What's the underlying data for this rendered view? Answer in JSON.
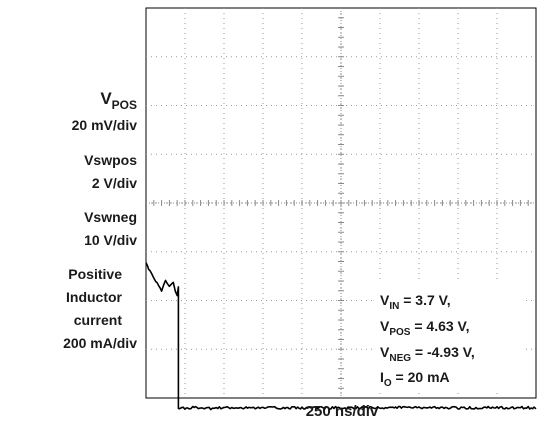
{
  "chart_data": {
    "type": "line",
    "title": "",
    "xlabel": "250 ns/div",
    "ylabel": "",
    "grid": true,
    "x_divisions": 10,
    "y_divisions": 8,
    "x_unit": "div",
    "y_unit": "div",
    "channel_labels": [
      {
        "main": "V",
        "sub": "POS",
        "scale": "20 mV/div"
      },
      {
        "main": "Vswpos",
        "scale": "2 V/div"
      },
      {
        "main": "Vswneg",
        "scale": "10 V/div"
      },
      {
        "lines": [
          "Positive",
          "Inductor",
          "current"
        ],
        "scale": "200 mA/div"
      }
    ],
    "conditions": [
      {
        "main": "V",
        "sub": "IN",
        "rest": " = 3.7 V,"
      },
      {
        "main": "V",
        "sub": "POS",
        "rest": " = 4.63 V,"
      },
      {
        "main": "V",
        "sub": "NEG",
        "rest": " = -4.93 V,"
      },
      {
        "main": "I",
        "sub": "O",
        "rest": " = 20 mA"
      }
    ],
    "series": [
      {
        "marker": "",
        "color": "#000000",
        "noise": 0.05,
        "x": [
          0,
          0.1,
          0.25,
          0.4,
          0.5,
          0.6,
          0.7,
          0.75,
          0.8,
          0.83,
          0.83,
          0.9,
          1.0,
          1.1,
          1.15,
          1.2,
          1.3,
          1.5,
          1.7,
          1.8,
          2.0,
          2.2,
          2.4,
          2.5,
          2.6,
          2.8,
          3.0,
          3.2,
          3.3,
          3.45,
          3.6,
          3.7,
          3.85,
          4.0,
          4.15,
          4.3,
          4.5,
          4.7,
          4.9,
          5.1,
          5.3,
          5.5,
          5.7,
          5.9,
          6.1,
          6.3,
          6.4,
          6.55,
          6.65,
          6.75,
          6.85,
          6.95,
          7.0,
          7.2,
          7.4,
          7.6,
          7.8,
          8.0,
          8.2,
          8.3,
          8.5,
          8.7,
          8.85,
          9.0,
          9.2,
          9.4,
          9.6,
          9.8,
          9.95,
          10.0
        ],
        "y": [
          2.75,
          2.6,
          2.4,
          2.2,
          2.4,
          2.3,
          2.35,
          2.2,
          2.1,
          2.3,
          -0.2,
          -0.2,
          -0.22,
          -0.2,
          -0.2,
          -0.18,
          -0.2,
          -0.2,
          -0.22,
          -0.2,
          -0.2,
          -0.2,
          -0.2,
          -0.2,
          -0.2,
          -0.2,
          -0.2,
          -0.2,
          -0.2,
          -0.2,
          -0.2,
          -0.2,
          -0.2,
          -0.2,
          -0.2,
          -0.2,
          -0.2,
          -0.2,
          -0.2,
          -0.2,
          -0.2,
          -0.2,
          -0.2,
          -0.2,
          -0.2,
          -0.2,
          -0.2,
          -0.2,
          -0.2,
          -0.2,
          -0.2,
          -0.2,
          -0.2,
          -0.2,
          -0.2,
          -0.2,
          -0.2,
          -0.2,
          -0.2,
          -0.2,
          -0.2,
          -0.2,
          -0.2,
          -0.2,
          -0.2,
          -0.2,
          -0.2,
          -0.2,
          -0.2,
          -0.2
        ]
      }
    ]
  }
}
